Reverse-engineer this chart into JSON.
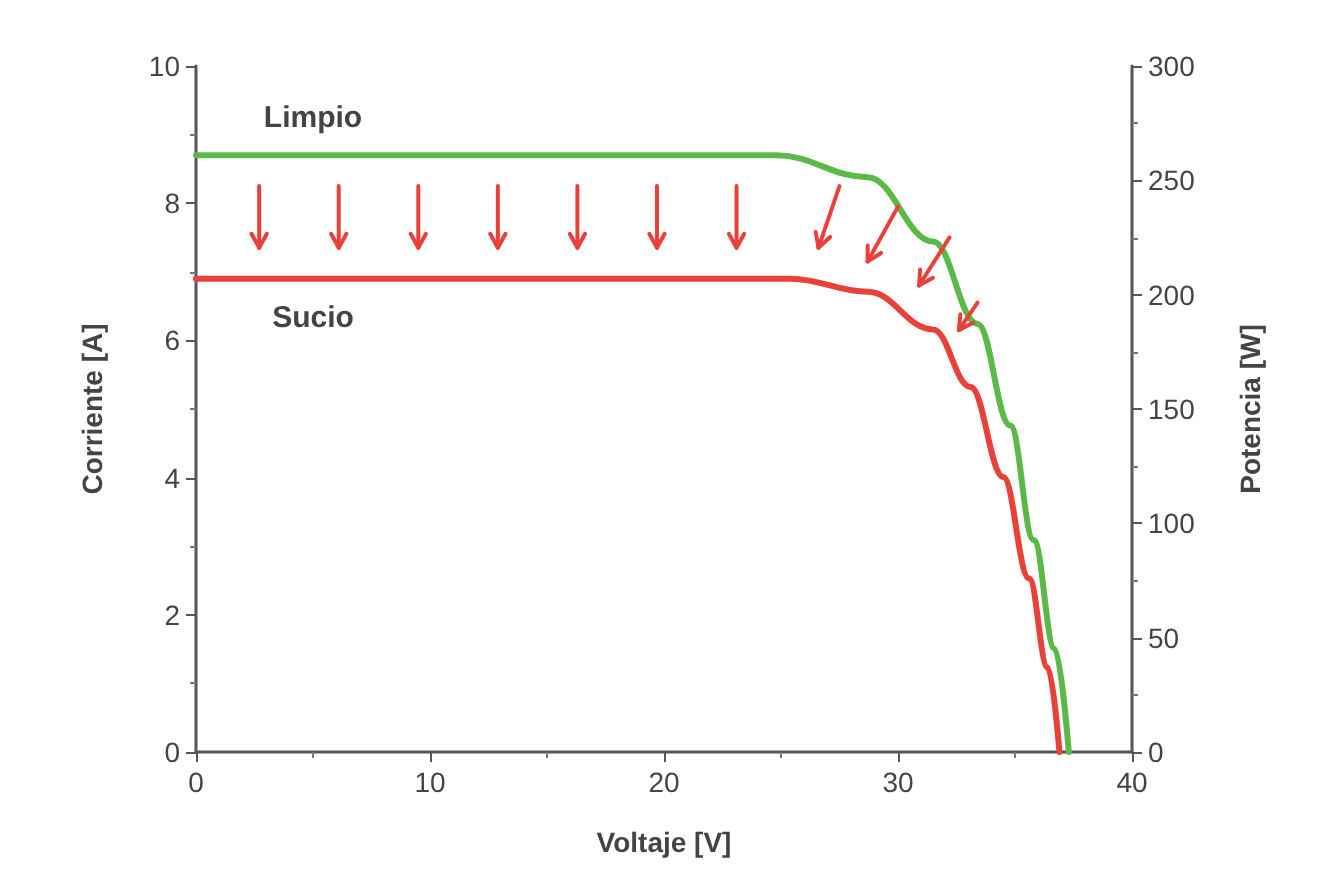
{
  "chart_data": {
    "type": "line",
    "xlabel": "Voltaje [V]",
    "ylabel": "Corriente [A]",
    "y2label": "Potencia [W]",
    "xlim": [
      0,
      40
    ],
    "xticks": [
      0,
      10,
      20,
      30,
      40
    ],
    "ylim": [
      0,
      10
    ],
    "yticks": [
      0,
      2,
      4,
      6,
      8,
      10
    ],
    "y2lim": [
      0,
      300
    ],
    "y2ticks": [
      0,
      50,
      100,
      150,
      200,
      250,
      300
    ],
    "grid": false,
    "legend": false,
    "marker": "none",
    "line_style": "solid",
    "series": [
      {
        "name": "Limpio",
        "color": "#5ab947",
        "x": [
          0,
          24.8,
          28.7,
          31.5,
          33.4,
          34.8,
          35.8,
          36.7,
          37.3
        ],
        "values": [
          8.7,
          8.7,
          8.38,
          7.44,
          6.24,
          4.76,
          3.09,
          1.5,
          0
        ]
      },
      {
        "name": "Sucio",
        "color": "#e8413a",
        "x": [
          0,
          25.4,
          28.7,
          31.5,
          33.1,
          34.5,
          35.6,
          36.4,
          36.9
        ],
        "values": [
          6.9,
          6.9,
          6.71,
          6.16,
          5.32,
          4.01,
          2.53,
          1.23,
          0
        ]
      }
    ]
  }
}
